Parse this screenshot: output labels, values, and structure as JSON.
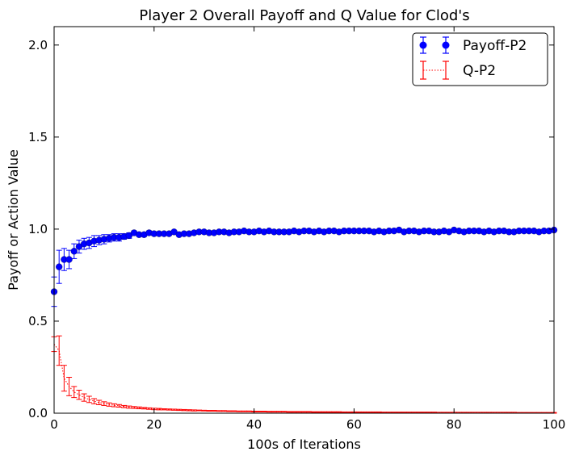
{
  "chart_data": {
    "type": "scatter",
    "title": "Player 2 Overall Payoff and Q Value for Clod's",
    "xlabel": "100s of Iterations",
    "ylabel": "Payoff or Action Value",
    "xlim": [
      0,
      100
    ],
    "ylim": [
      0.0,
      2.1
    ],
    "x_ticks": [
      0,
      20,
      40,
      60,
      80,
      100
    ],
    "x_tick_labels": [
      "0",
      "20",
      "40",
      "60",
      "80",
      "100"
    ],
    "y_ticks": [
      0.0,
      0.5,
      1.0,
      1.5,
      2.0
    ],
    "y_tick_labels": [
      "0.0",
      "0.5",
      "1.0",
      "1.5",
      "2.0"
    ],
    "grid": false,
    "legend": "top-right",
    "series": [
      {
        "name": "Payoff-P2",
        "style": "points-errorbars",
        "color": "#0000ff",
        "x": [
          0,
          1,
          2,
          3,
          4,
          5,
          6,
          7,
          8,
          9,
          10,
          11,
          12,
          13,
          14,
          15,
          16,
          17,
          18,
          19,
          20,
          21,
          22,
          23,
          24,
          25,
          26,
          27,
          28,
          29,
          30,
          31,
          32,
          33,
          34,
          35,
          36,
          37,
          38,
          39,
          40,
          41,
          42,
          43,
          44,
          45,
          46,
          47,
          48,
          49,
          50,
          51,
          52,
          53,
          54,
          55,
          56,
          57,
          58,
          59,
          60,
          61,
          62,
          63,
          64,
          65,
          66,
          67,
          68,
          69,
          70,
          71,
          72,
          73,
          74,
          75,
          76,
          77,
          78,
          79,
          80,
          81,
          82,
          83,
          84,
          85,
          86,
          87,
          88,
          89,
          90,
          91,
          92,
          93,
          94,
          95,
          96,
          97,
          98,
          99,
          100
        ],
        "y": [
          0.66,
          0.795,
          0.835,
          0.835,
          0.88,
          0.905,
          0.92,
          0.925,
          0.935,
          0.94,
          0.945,
          0.95,
          0.955,
          0.955,
          0.96,
          0.965,
          0.98,
          0.97,
          0.97,
          0.98,
          0.975,
          0.975,
          0.975,
          0.975,
          0.985,
          0.97,
          0.975,
          0.975,
          0.98,
          0.985,
          0.985,
          0.98,
          0.98,
          0.985,
          0.985,
          0.98,
          0.985,
          0.985,
          0.99,
          0.985,
          0.985,
          0.99,
          0.985,
          0.99,
          0.985,
          0.985,
          0.985,
          0.985,
          0.99,
          0.985,
          0.99,
          0.99,
          0.985,
          0.99,
          0.985,
          0.99,
          0.99,
          0.985,
          0.99,
          0.99,
          0.99,
          0.99,
          0.99,
          0.99,
          0.985,
          0.99,
          0.985,
          0.99,
          0.99,
          0.995,
          0.985,
          0.99,
          0.99,
          0.985,
          0.99,
          0.99,
          0.985,
          0.985,
          0.99,
          0.985,
          0.995,
          0.99,
          0.985,
          0.99,
          0.99,
          0.99,
          0.985,
          0.99,
          0.985,
          0.99,
          0.99,
          0.985,
          0.985,
          0.99,
          0.99,
          0.99,
          0.99,
          0.985,
          0.99,
          0.99,
          0.995
        ],
        "err": [
          0.08,
          0.09,
          0.06,
          0.05,
          0.04,
          0.035,
          0.03,
          0.03,
          0.03,
          0.025,
          0.025,
          0.02,
          0.02,
          0.02,
          0.015,
          0.015,
          0.01,
          0.01,
          0.01,
          0.01,
          0.01,
          0.008,
          0.008,
          0.008,
          0.006,
          0.006,
          0.006,
          0.006,
          0.005,
          0.005,
          0.005,
          0.005,
          0.005,
          0.004,
          0.004,
          0.004,
          0.004,
          0.004,
          0.004,
          0.004,
          0.003,
          0.003,
          0.003,
          0.003,
          0.003,
          0.003,
          0.003,
          0.003,
          0.003,
          0.003,
          0.003,
          0.003,
          0.003,
          0.003,
          0.003,
          0.003,
          0.003,
          0.003,
          0.003,
          0.003,
          0.003,
          0.003,
          0.003,
          0.003,
          0.003,
          0.003,
          0.003,
          0.003,
          0.003,
          0.003,
          0.003,
          0.003,
          0.003,
          0.003,
          0.003,
          0.003,
          0.003,
          0.003,
          0.003,
          0.003,
          0.003,
          0.003,
          0.003,
          0.003,
          0.003,
          0.003,
          0.003,
          0.003,
          0.003,
          0.003,
          0.003,
          0.003,
          0.003,
          0.003,
          0.003,
          0.003,
          0.003,
          0.003,
          0.003,
          0.003,
          0.003
        ]
      },
      {
        "name": "Q-P2",
        "style": "dotted-line-errorbars",
        "color": "#ff0000",
        "x": [
          0,
          1,
          2,
          3,
          4,
          5,
          6,
          7,
          8,
          9,
          10,
          11,
          12,
          13,
          14,
          15,
          16,
          17,
          18,
          19,
          20,
          21,
          22,
          23,
          24,
          25,
          26,
          27,
          28,
          29,
          30,
          31,
          32,
          33,
          34,
          35,
          36,
          37,
          38,
          39,
          40,
          41,
          42,
          43,
          44,
          45,
          46,
          47,
          48,
          49,
          50,
          51,
          52,
          53,
          54,
          55,
          56,
          57,
          58,
          59,
          60,
          61,
          62,
          63,
          64,
          65,
          66,
          67,
          68,
          69,
          70,
          71,
          72,
          73,
          74,
          75,
          76,
          77,
          78,
          79,
          80,
          81,
          82,
          83,
          84,
          85,
          86,
          87,
          88,
          89,
          90,
          91,
          92,
          93,
          94,
          95,
          96,
          97,
          98,
          99,
          100
        ],
        "y": [
          0.375,
          0.34,
          0.19,
          0.145,
          0.115,
          0.1,
          0.085,
          0.075,
          0.065,
          0.058,
          0.052,
          0.047,
          0.043,
          0.04,
          0.036,
          0.033,
          0.031,
          0.029,
          0.027,
          0.025,
          0.023,
          0.022,
          0.021,
          0.02,
          0.019,
          0.018,
          0.017,
          0.016,
          0.015,
          0.015,
          0.014,
          0.013,
          0.013,
          0.012,
          0.012,
          0.011,
          0.011,
          0.01,
          0.01,
          0.01,
          0.009,
          0.009,
          0.009,
          0.008,
          0.008,
          0.008,
          0.008,
          0.007,
          0.007,
          0.007,
          0.007,
          0.007,
          0.006,
          0.006,
          0.006,
          0.006,
          0.006,
          0.006,
          0.005,
          0.005,
          0.005,
          0.005,
          0.005,
          0.005,
          0.005,
          0.005,
          0.004,
          0.004,
          0.004,
          0.004,
          0.004,
          0.004,
          0.004,
          0.004,
          0.004,
          0.004,
          0.004,
          0.003,
          0.003,
          0.003,
          0.003,
          0.003,
          0.003,
          0.003,
          0.003,
          0.003,
          0.003,
          0.003,
          0.003,
          0.003,
          0.003,
          0.003,
          0.003,
          0.002,
          0.002,
          0.002,
          0.002,
          0.002,
          0.002,
          0.002,
          0.002
        ],
        "err": [
          0.04,
          0.08,
          0.07,
          0.05,
          0.03,
          0.025,
          0.02,
          0.017,
          0.014,
          0.012,
          0.01,
          0.009,
          0.008,
          0.007,
          0.006,
          0.006,
          0.005,
          0.005,
          0.004,
          0.004,
          0.004,
          0.004,
          0.003,
          0.003,
          0.003,
          0.003,
          0.003,
          0.003,
          0.003,
          0.002,
          0.002,
          0.002,
          0.002,
          0.002,
          0.002,
          0.002,
          0.002,
          0.002,
          0.002,
          0.002,
          0.002,
          0.002,
          0.002,
          0.002,
          0.002,
          0.002,
          0.002,
          0.002,
          0.002,
          0.002,
          0.002,
          0.002,
          0.002,
          0.002,
          0.002,
          0.002,
          0.002,
          0.002,
          0.002,
          0.002,
          0.002,
          0.002,
          0.002,
          0.002,
          0.002,
          0.002,
          0.002,
          0.002,
          0.002,
          0.002,
          0.002,
          0.002,
          0.002,
          0.002,
          0.002,
          0.002,
          0.002,
          0.002,
          0.002,
          0.002,
          0.002,
          0.002,
          0.002,
          0.002,
          0.002,
          0.002,
          0.002,
          0.002,
          0.002,
          0.002,
          0.002,
          0.002,
          0.002,
          0.002,
          0.002,
          0.002,
          0.002,
          0.002,
          0.002,
          0.002,
          0.002
        ]
      }
    ]
  }
}
